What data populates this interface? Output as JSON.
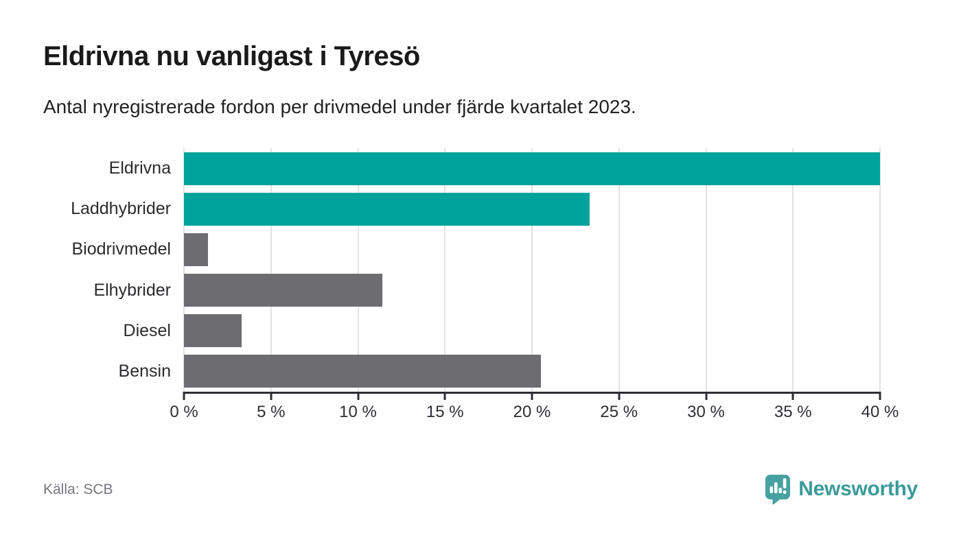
{
  "header": {
    "title": "Eldrivna nu vanligast i Tyresö",
    "subtitle": "Antal nyregistrerade fordon per drivmedel under fjärde kvartalet 2023."
  },
  "chart_data": {
    "type": "bar",
    "orientation": "horizontal",
    "title": "Eldrivna nu vanligast i Tyresö",
    "subtitle": "Antal nyregistrerade fordon per drivmedel under fjärde kvartalet 2023.",
    "categories": [
      "Eldrivna",
      "Laddhybrider",
      "Biodrivmedel",
      "Elhybrider",
      "Diesel",
      "Bensin"
    ],
    "values": [
      40.0,
      23.3,
      1.4,
      11.4,
      3.3,
      20.5
    ],
    "unit": "%",
    "bar_colors": [
      "#00a39b",
      "#00a39b",
      "#6c6c71",
      "#6c6c71",
      "#6c6c71",
      "#6c6c71"
    ],
    "xlabel": "",
    "ylabel": "",
    "xlim": [
      0,
      40
    ],
    "x_ticks": [
      0,
      5,
      10,
      15,
      20,
      25,
      30,
      35,
      40
    ],
    "x_tick_labels": [
      "0 %",
      "5 %",
      "10 %",
      "15 %",
      "20 %",
      "25 %",
      "30 %",
      "35 %",
      "40 %"
    ],
    "grid": "vertical",
    "legend": "none"
  },
  "footer": {
    "source": "Källa: SCB",
    "logo_text": "Newsworthy"
  },
  "colors": {
    "accent_teal": "#00a39b",
    "bar_gray": "#6c6c71",
    "gridline": "#e2e2e2",
    "axis_text": "#2e2e33",
    "source_text": "#75757d",
    "logo_teal": "#47a1a1",
    "logo_text_teal": "#3b9a99"
  }
}
